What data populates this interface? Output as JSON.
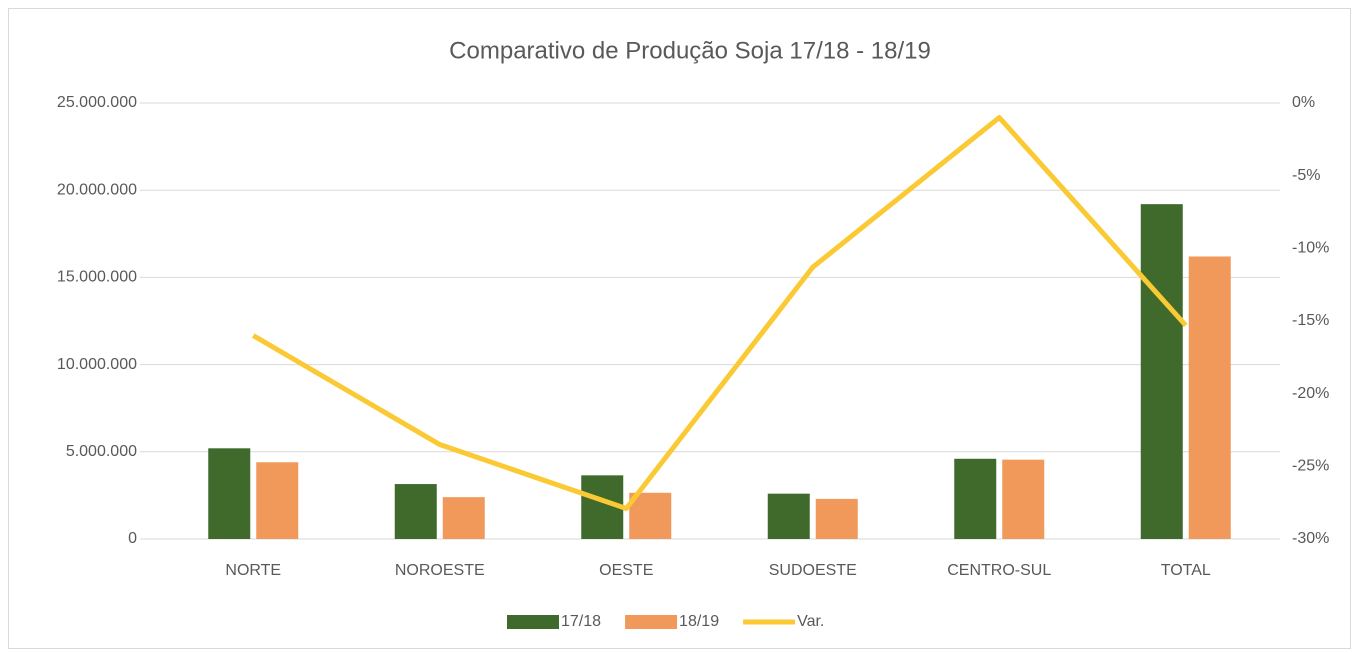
{
  "chart_data": {
    "type": "bar-line",
    "title": "Comparativo de Produção Soja 17/18 - 18/19",
    "categories": [
      "NORTE",
      "NOROESTE",
      "OESTE",
      "SUDOESTE",
      "CENTRO-SUL",
      "TOTAL"
    ],
    "series": [
      {
        "name": "17/18",
        "color": "#3f6a2c",
        "values": [
          5200000,
          3150000,
          3650000,
          2600000,
          4600000,
          19200000
        ]
      },
      {
        "name": "18/19",
        "color": "#f0995a",
        "values": [
          4400000,
          2400000,
          2650000,
          2300000,
          4550000,
          16200000
        ]
      },
      {
        "name": "Var.",
        "color": "#fbc934",
        "axis": "y2",
        "values": [
          -16.0,
          -23.5,
          -27.9,
          -11.3,
          -1.0,
          -15.3
        ]
      }
    ],
    "ylim": [
      0,
      25000000
    ],
    "yticks": [
      0,
      {
        "value": 5000000,
        "label": "5.000.000"
      },
      {
        "value": 10000000,
        "label": "10.000.000"
      },
      {
        "value": 15000000,
        "label": "15.000.000"
      },
      {
        "value": 20000000,
        "label": "20.000.000"
      },
      {
        "value": 25000000,
        "label": "25.000.000"
      }
    ],
    "y2lim": [
      -30,
      0
    ],
    "y2ticks": [
      {
        "value": -30,
        "label": "-30%"
      },
      {
        "value": -25,
        "label": "-25%"
      },
      {
        "value": -20,
        "label": "-20%"
      },
      {
        "value": -15,
        "label": "-15%"
      },
      {
        "value": -10,
        "label": "-10%"
      },
      {
        "value": -5,
        "label": "-5%"
      },
      {
        "value": 0,
        "label": "0%"
      }
    ],
    "grid": true,
    "legend": "bottom"
  }
}
